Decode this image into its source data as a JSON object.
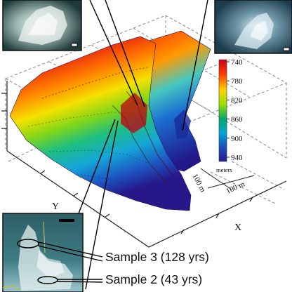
{
  "colorbar": {
    "ticks": [
      "740",
      "780",
      "820",
      "860",
      "900",
      "940"
    ],
    "unit": "meters",
    "colors": [
      "#c8001e",
      "#ff3a00",
      "#ffd400",
      "#9be000",
      "#00a86b",
      "#00a6d6",
      "#1a4fc0",
      "#2a1a8c"
    ]
  },
  "axes": {
    "y_label": "Y",
    "x_label": "X",
    "scale_a": "100 m",
    "scale_b": "100 m"
  },
  "callouts": {
    "sample3": "Sample 3 (128 yrs)",
    "sample2": "Sample 2 (43 yrs)"
  },
  "colors": {
    "grid": "#8a8a8a",
    "pointer": "#000000",
    "photo_frame": "#111111"
  }
}
